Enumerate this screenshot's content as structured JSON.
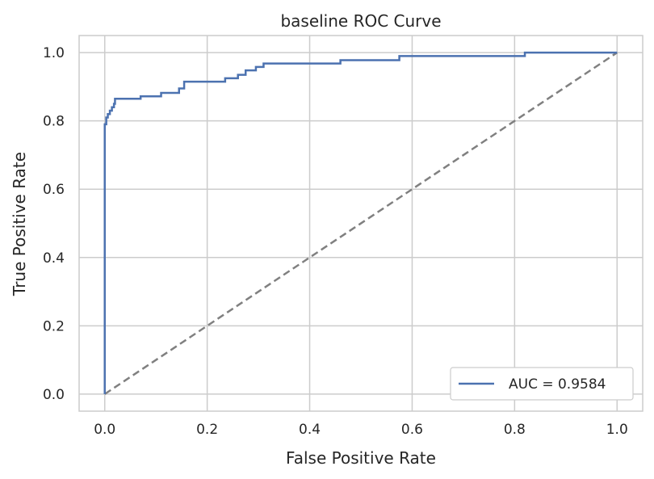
{
  "chart_data": {
    "type": "line",
    "title": "baseline ROC Curve",
    "xlabel": "False Positive Rate",
    "ylabel": "True Positive Rate",
    "xlim": [
      -0.05,
      1.05
    ],
    "ylim": [
      -0.05,
      1.05
    ],
    "xticks": [
      0.0,
      0.2,
      0.4,
      0.6,
      0.8,
      1.0
    ],
    "yticks": [
      0.0,
      0.2,
      0.4,
      0.6,
      0.8,
      1.0
    ],
    "xtick_labels": [
      "0.0",
      "0.2",
      "0.4",
      "0.6",
      "0.8",
      "1.0"
    ],
    "ytick_labels": [
      "0.0",
      "0.2",
      "0.4",
      "0.6",
      "0.8",
      "1.0"
    ],
    "grid": true,
    "legend_position": "lower-right",
    "series": [
      {
        "name": "AUC = 0.9584",
        "color": "#4c72b0",
        "style": "solid",
        "x": [
          0.0,
          0.0,
          0.003,
          0.003,
          0.006,
          0.006,
          0.01,
          0.01,
          0.014,
          0.014,
          0.018,
          0.018,
          0.02,
          0.02,
          0.03,
          0.07,
          0.07,
          0.11,
          0.11,
          0.145,
          0.145,
          0.155,
          0.155,
          0.235,
          0.235,
          0.26,
          0.26,
          0.275,
          0.275,
          0.295,
          0.295,
          0.31,
          0.31,
          0.46,
          0.46,
          0.575,
          0.575,
          0.82,
          0.82,
          1.0
        ],
        "y": [
          0.0,
          0.79,
          0.79,
          0.81,
          0.81,
          0.82,
          0.82,
          0.83,
          0.83,
          0.84,
          0.84,
          0.85,
          0.85,
          0.865,
          0.865,
          0.865,
          0.872,
          0.872,
          0.882,
          0.882,
          0.895,
          0.895,
          0.915,
          0.915,
          0.925,
          0.925,
          0.935,
          0.935,
          0.948,
          0.948,
          0.958,
          0.958,
          0.968,
          0.968,
          0.978,
          0.978,
          0.99,
          0.99,
          1.0,
          1.0
        ]
      },
      {
        "name": "",
        "color": "#808080",
        "style": "dashed",
        "x": [
          0.0,
          1.0
        ],
        "y": [
          0.0,
          1.0
        ]
      }
    ]
  }
}
